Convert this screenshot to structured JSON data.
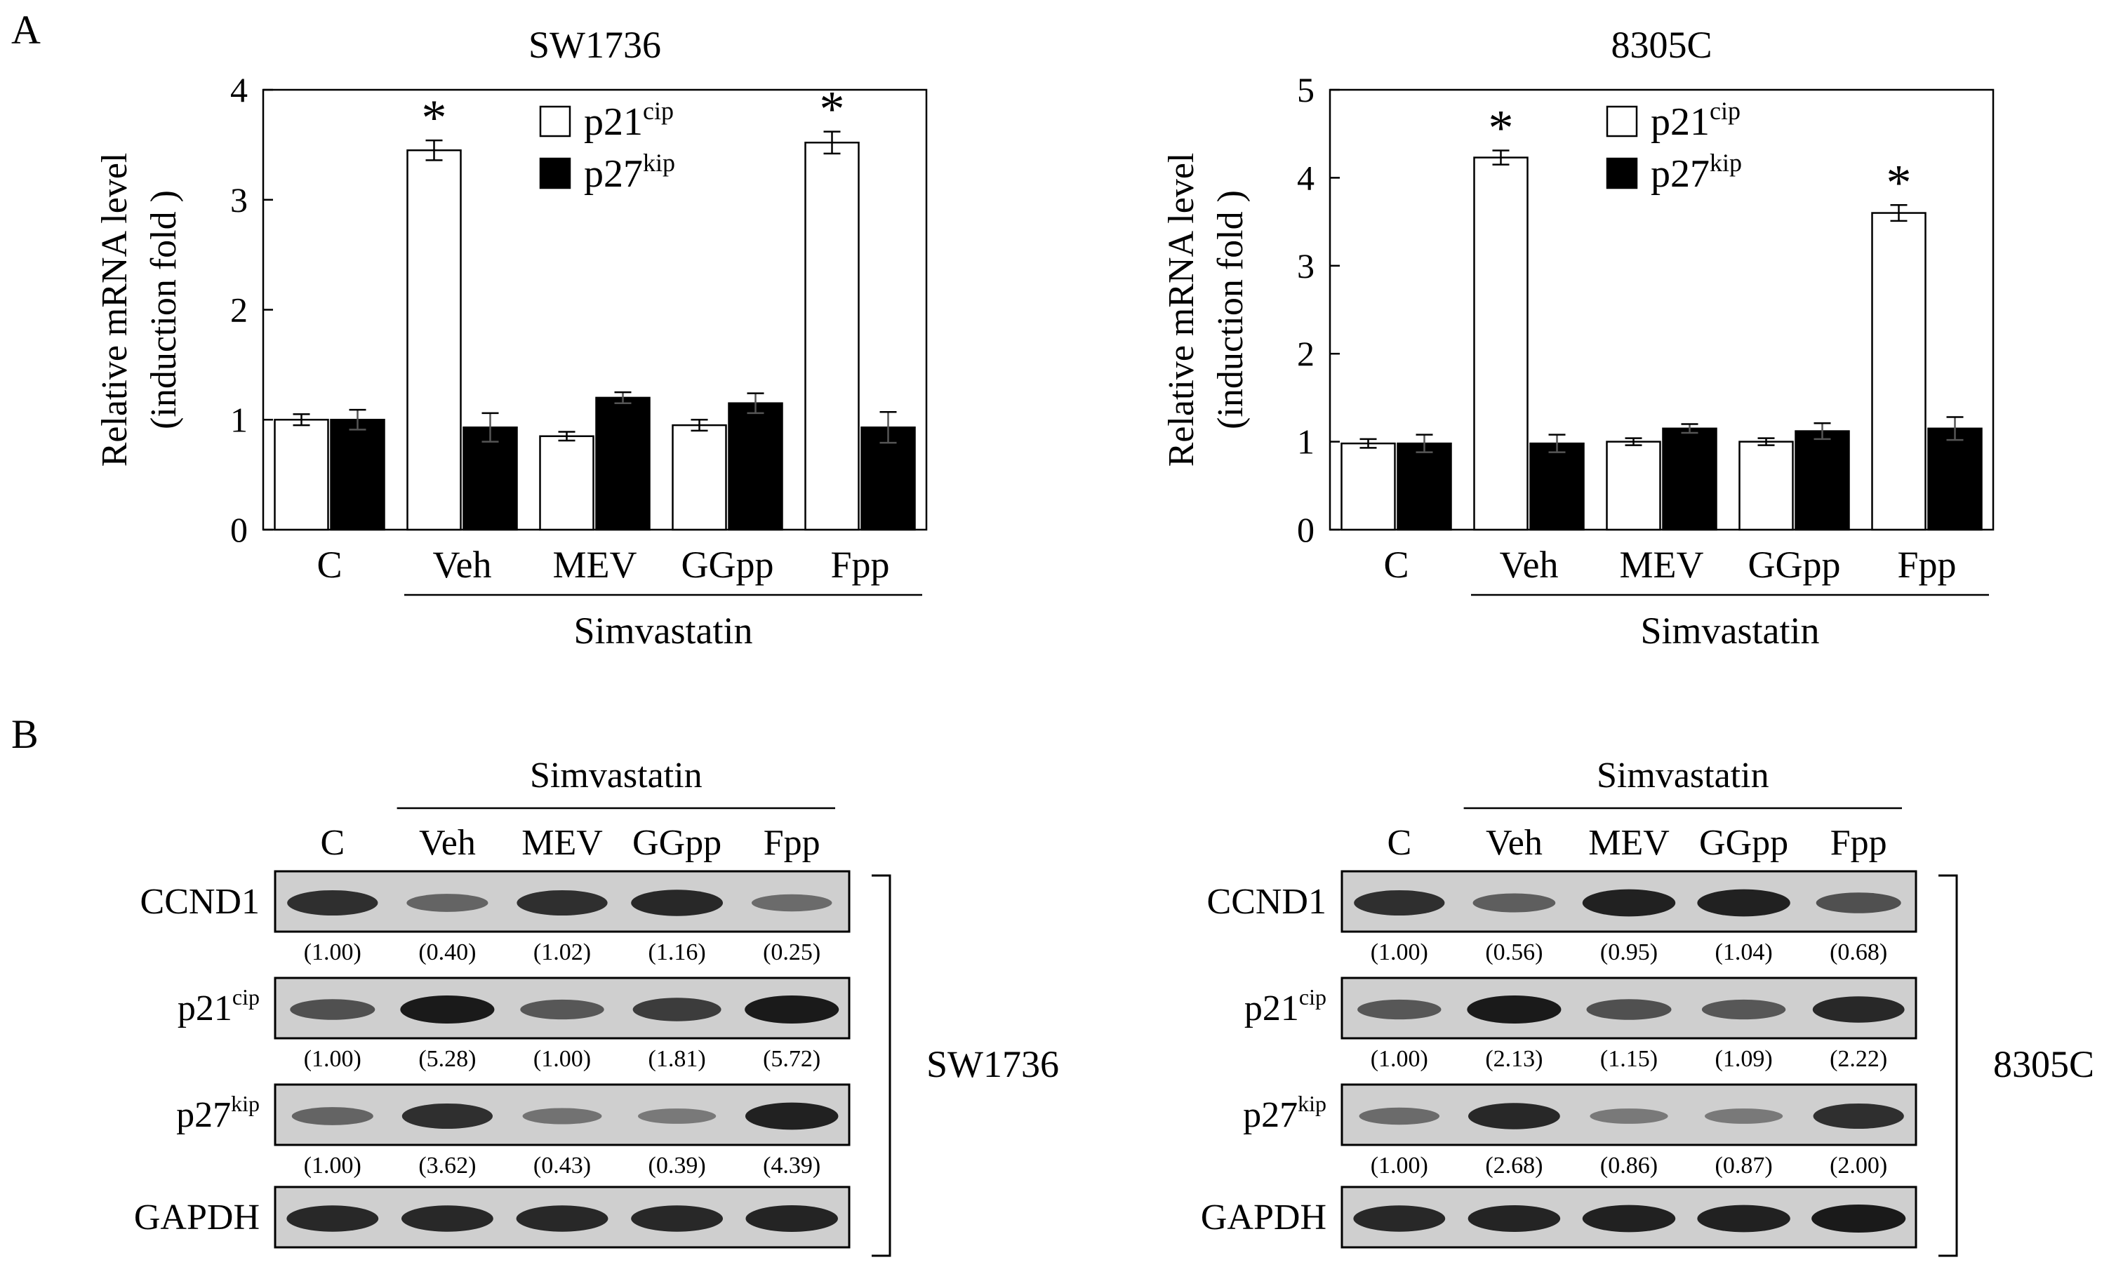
{
  "panel_labels": {
    "a": "A",
    "b": "B"
  },
  "colors": {
    "ink": "#000000",
    "bar_p21": "#ffffff",
    "bar_p27": "#000000",
    "blot_bg": "#cfcfcf",
    "band": "#1a1a1a"
  },
  "chart_data": [
    {
      "type": "bar",
      "title": "SW1736",
      "ylabel": "Relative mRNA level",
      "ylabel2": "(induction fold )",
      "ylim": [
        0,
        4
      ],
      "yticks": [
        0,
        1,
        2,
        3,
        4
      ],
      "categories": [
        "C",
        "Veh",
        "MEV",
        "GGpp",
        "Fpp"
      ],
      "group": {
        "label": "Simvastatin",
        "from": 1,
        "to": 4
      },
      "series": [
        {
          "name": "p21",
          "sup": "cip",
          "values": [
            1.0,
            3.45,
            0.85,
            0.95,
            3.52
          ],
          "errors": [
            0.05,
            0.09,
            0.04,
            0.05,
            0.1
          ],
          "star": [
            false,
            true,
            false,
            false,
            true
          ]
        },
        {
          "name": "p27",
          "sup": "kip",
          "values": [
            1.0,
            0.93,
            1.2,
            1.15,
            0.93
          ],
          "errors": [
            0.09,
            0.13,
            0.05,
            0.09,
            0.14
          ],
          "star": [
            false,
            false,
            false,
            false,
            false
          ]
        }
      ]
    },
    {
      "type": "bar",
      "title": "8305C",
      "ylabel": "Relative mRNA level",
      "ylabel2": "(induction fold )",
      "ylim": [
        0,
        5
      ],
      "yticks": [
        0,
        1,
        2,
        3,
        4,
        5
      ],
      "categories": [
        "C",
        "Veh",
        "MEV",
        "GGpp",
        "Fpp"
      ],
      "group": {
        "label": "Simvastatin",
        "from": 1,
        "to": 4
      },
      "series": [
        {
          "name": "p21",
          "sup": "cip",
          "values": [
            0.98,
            4.23,
            1.0,
            1.0,
            3.6
          ],
          "errors": [
            0.05,
            0.08,
            0.04,
            0.04,
            0.09
          ],
          "star": [
            false,
            true,
            false,
            false,
            true
          ]
        },
        {
          "name": "p27",
          "sup": "kip",
          "values": [
            0.98,
            0.98,
            1.15,
            1.12,
            1.15
          ],
          "errors": [
            0.1,
            0.1,
            0.05,
            0.09,
            0.13
          ],
          "star": [
            false,
            false,
            false,
            false,
            false
          ]
        }
      ]
    }
  ],
  "blots": [
    {
      "cell_line": "SW1736",
      "group_label": "Simvastatin",
      "lanes": [
        "C",
        "Veh",
        "MEV",
        "GGpp",
        "Fpp"
      ],
      "rows": [
        {
          "name": "CCND1",
          "sup": "",
          "intensity": [
            0.85,
            0.45,
            0.85,
            0.9,
            0.4
          ],
          "quant": [
            "(1.00)",
            "(0.40)",
            "(1.02)",
            "(1.16)",
            "(0.25)"
          ]
        },
        {
          "name": "p21",
          "sup": "cip",
          "intensity": [
            0.6,
            1.0,
            0.55,
            0.75,
            1.0
          ],
          "quant": [
            "(1.00)",
            "(5.28)",
            "(1.00)",
            "(1.81)",
            "(5.72)"
          ]
        },
        {
          "name": "p27",
          "sup": "kip",
          "intensity": [
            0.45,
            0.85,
            0.35,
            0.3,
            0.95
          ],
          "quant": [
            "(1.00)",
            "(3.62)",
            "(0.43)",
            "(0.39)",
            "(4.39)"
          ]
        },
        {
          "name": "GAPDH",
          "sup": "",
          "intensity": [
            0.9,
            0.9,
            0.9,
            0.9,
            0.92
          ],
          "quant": []
        }
      ]
    },
    {
      "cell_line": "8305C",
      "group_label": "Simvastatin",
      "lanes": [
        "C",
        "Veh",
        "MEV",
        "GGpp",
        "Fpp"
      ],
      "rows": [
        {
          "name": "CCND1",
          "sup": "",
          "intensity": [
            0.85,
            0.5,
            0.95,
            0.95,
            0.6
          ],
          "quant": [
            "(1.00)",
            "(0.56)",
            "(0.95)",
            "(1.04)",
            "(0.68)"
          ]
        },
        {
          "name": "p21",
          "sup": "cip",
          "intensity": [
            0.55,
            1.0,
            0.6,
            0.55,
            0.9
          ],
          "quant": [
            "(1.00)",
            "(2.13)",
            "(1.15)",
            "(1.09)",
            "(2.22)"
          ]
        },
        {
          "name": "p27",
          "sup": "kip",
          "intensity": [
            0.4,
            0.9,
            0.3,
            0.3,
            0.85
          ],
          "quant": [
            "(1.00)",
            "(2.68)",
            "(0.86)",
            "(0.87)",
            "(2.00)"
          ]
        },
        {
          "name": "GAPDH",
          "sup": "",
          "intensity": [
            0.9,
            0.92,
            0.95,
            0.95,
            1.0
          ],
          "quant": []
        }
      ]
    }
  ]
}
